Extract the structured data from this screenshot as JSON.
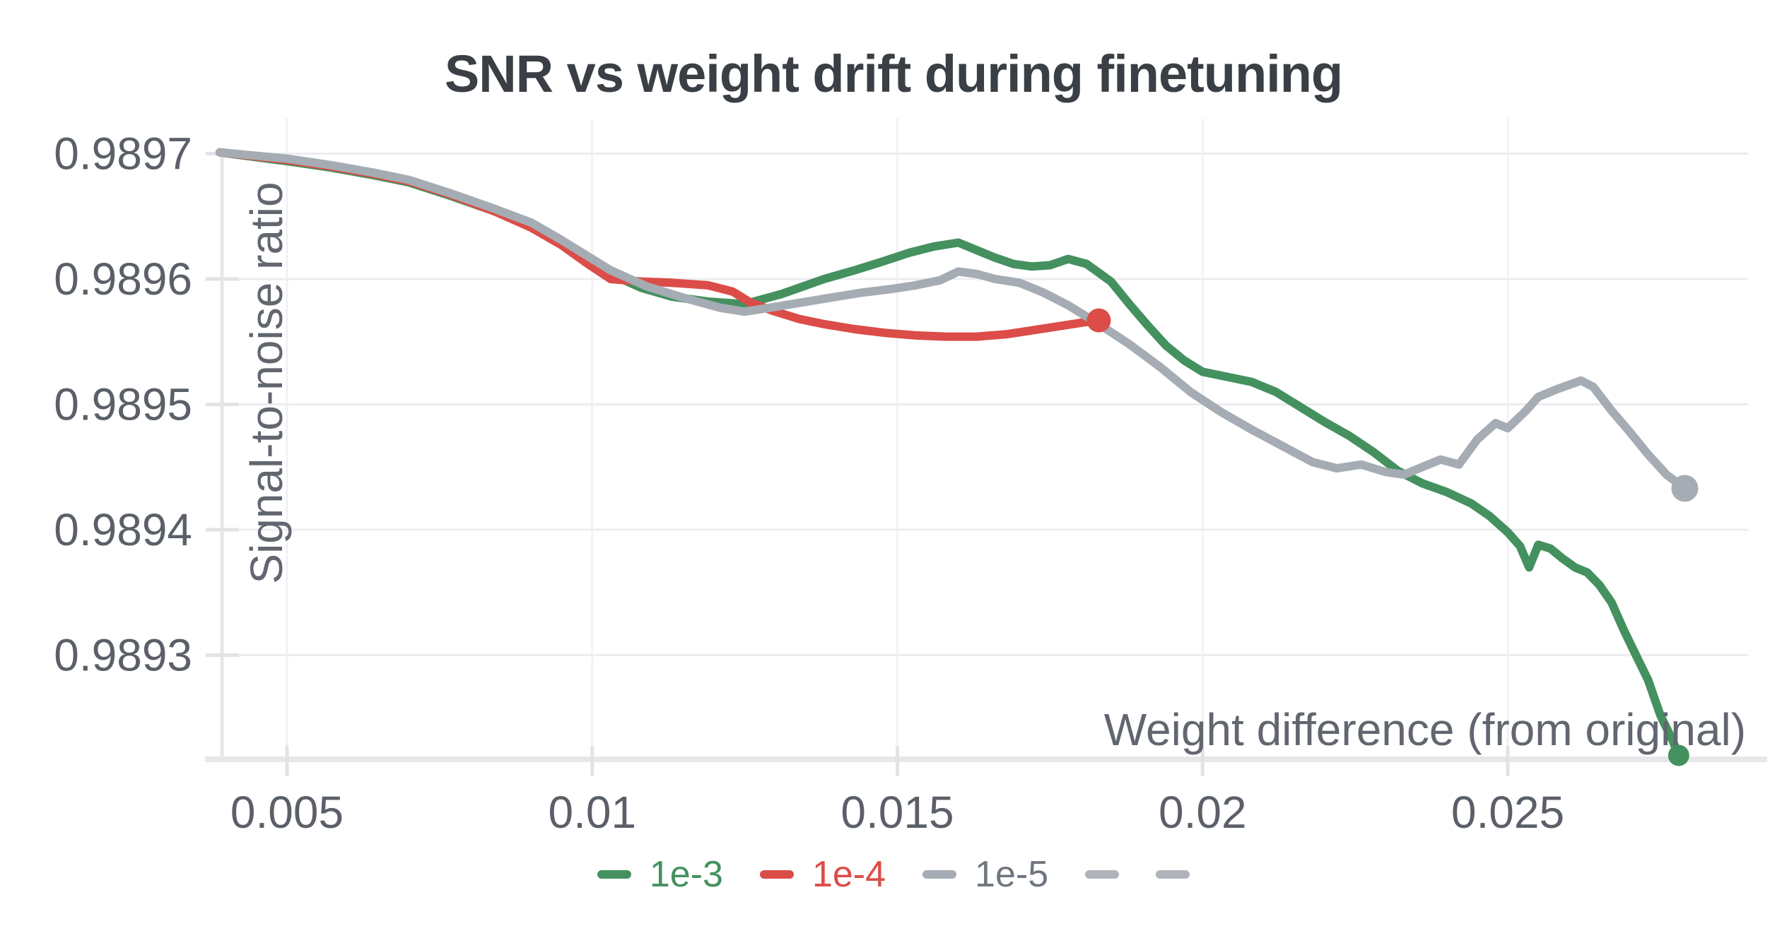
{
  "chart_data": {
    "type": "line",
    "title": "SNR vs weight drift during finetuning",
    "xlabel": "Weight difference (from original)",
    "ylabel": "Signal-to-noise ratio",
    "grid": true,
    "legend_position": "bottom",
    "xlim": [
      0.0039,
      0.0289
    ],
    "ylim": [
      0.98922,
      0.98973
    ],
    "x_ticks": [
      0.005,
      0.01,
      0.015,
      0.02,
      0.025
    ],
    "x_tick_labels": [
      "0.005",
      "0.01",
      "0.015",
      "0.02",
      "0.025"
    ],
    "y_ticks": [
      0.9893,
      0.9894,
      0.9895,
      0.9896,
      0.9897
    ],
    "y_tick_labels": [
      "0.9893",
      "0.9894",
      "0.9895",
      "0.9896",
      "0.9897"
    ],
    "colors": {
      "green": "#44915f",
      "red": "#dc4c48",
      "gray": "#a5acb3",
      "legend_gray_text": "#6f767f",
      "title_text": "#3a3f45",
      "tick_text": "#5b6068",
      "axis_label_text": "#61666f",
      "gridline": "#ededf0",
      "axis_line": "#e7e7ea",
      "tick_mark": "#e2e3e6"
    },
    "series": [
      {
        "name": "1e-3",
        "color": "#44915f",
        "label_color": "#44915f",
        "end_dot": true,
        "end_dot_radius": 15,
        "points": [
          [
            0.0039,
            0.989701
          ],
          [
            0.005,
            0.989694
          ],
          [
            0.0057,
            0.989689
          ],
          [
            0.0064,
            0.989683
          ],
          [
            0.007,
            0.989677
          ],
          [
            0.0077,
            0.989666
          ],
          [
            0.0084,
            0.989654
          ],
          [
            0.009,
            0.989643
          ],
          [
            0.0095,
            0.989629
          ],
          [
            0.0099,
            0.989617
          ],
          [
            0.0103,
            0.989604
          ],
          [
            0.0108,
            0.989593
          ],
          [
            0.0113,
            0.989586
          ],
          [
            0.0119,
            0.989582
          ],
          [
            0.0125,
            0.98958
          ],
          [
            0.0131,
            0.989588
          ],
          [
            0.0138,
            0.9896
          ],
          [
            0.0143,
            0.989607
          ],
          [
            0.0147,
            0.989613
          ],
          [
            0.0152,
            0.989621
          ],
          [
            0.0156,
            0.989626
          ],
          [
            0.016,
            0.989629
          ],
          [
            0.0163,
            0.989623
          ],
          [
            0.0166,
            0.989617
          ],
          [
            0.0169,
            0.989612
          ],
          [
            0.0172,
            0.98961
          ],
          [
            0.0175,
            0.989611
          ],
          [
            0.0178,
            0.989616
          ],
          [
            0.0181,
            0.989612
          ],
          [
            0.0185,
            0.989598
          ],
          [
            0.0188,
            0.98958
          ],
          [
            0.0191,
            0.989563
          ],
          [
            0.0194,
            0.989547
          ],
          [
            0.0197,
            0.989535
          ],
          [
            0.02,
            0.989526
          ],
          [
            0.0204,
            0.989522
          ],
          [
            0.0208,
            0.989518
          ],
          [
            0.0212,
            0.98951
          ],
          [
            0.0216,
            0.989498
          ],
          [
            0.022,
            0.989486
          ],
          [
            0.0224,
            0.989475
          ],
          [
            0.0228,
            0.989462
          ],
          [
            0.0232,
            0.989447
          ],
          [
            0.0236,
            0.989437
          ],
          [
            0.024,
            0.98943
          ],
          [
            0.0244,
            0.989421
          ],
          [
            0.0247,
            0.989411
          ],
          [
            0.025,
            0.989398
          ],
          [
            0.0252,
            0.989387
          ],
          [
            0.02535,
            0.98937
          ],
          [
            0.0255,
            0.989388
          ],
          [
            0.0257,
            0.989385
          ],
          [
            0.0259,
            0.989377
          ],
          [
            0.0261,
            0.98937
          ],
          [
            0.0263,
            0.989366
          ],
          [
            0.0265,
            0.989356
          ],
          [
            0.0267,
            0.989342
          ],
          [
            0.0269,
            0.98932
          ],
          [
            0.0271,
            0.9893
          ],
          [
            0.0273,
            0.98928
          ],
          [
            0.0275,
            0.989252
          ],
          [
            0.0277,
            0.989232
          ],
          [
            0.0278,
            0.98922
          ]
        ]
      },
      {
        "name": "1e-4",
        "color": "#dc4c48",
        "label_color": "#dc4c48",
        "end_dot": true,
        "end_dot_radius": 17,
        "points": [
          [
            0.0039,
            0.989701
          ],
          [
            0.005,
            0.989695
          ],
          [
            0.0057,
            0.98969
          ],
          [
            0.0064,
            0.989684
          ],
          [
            0.007,
            0.989678
          ],
          [
            0.0077,
            0.989667
          ],
          [
            0.0084,
            0.989654
          ],
          [
            0.009,
            0.989641
          ],
          [
            0.0095,
            0.989627
          ],
          [
            0.0099,
            0.989613
          ],
          [
            0.0103,
            0.9896
          ],
          [
            0.0108,
            0.989598
          ],
          [
            0.0113,
            0.989597
          ],
          [
            0.0119,
            0.989595
          ],
          [
            0.0123,
            0.98959
          ],
          [
            0.0126,
            0.989581
          ],
          [
            0.013,
            0.989574
          ],
          [
            0.0134,
            0.989568
          ],
          [
            0.0138,
            0.989564
          ],
          [
            0.0143,
            0.98956
          ],
          [
            0.0148,
            0.989557
          ],
          [
            0.0153,
            0.989555
          ],
          [
            0.0158,
            0.989554
          ],
          [
            0.0163,
            0.989554
          ],
          [
            0.0168,
            0.989556
          ],
          [
            0.0172,
            0.989559
          ],
          [
            0.0176,
            0.989562
          ],
          [
            0.018,
            0.989565
          ],
          [
            0.0183,
            0.989567
          ]
        ]
      },
      {
        "name": "1e-5",
        "color": "#a5acb3",
        "label_color": "#6f767f",
        "end_dot": true,
        "end_dot_radius": 19,
        "points": [
          [
            0.0039,
            0.989701
          ],
          [
            0.005,
            0.989696
          ],
          [
            0.0057,
            0.989691
          ],
          [
            0.0064,
            0.989685
          ],
          [
            0.007,
            0.989679
          ],
          [
            0.0077,
            0.989668
          ],
          [
            0.0084,
            0.989656
          ],
          [
            0.009,
            0.989645
          ],
          [
            0.0095,
            0.989631
          ],
          [
            0.0099,
            0.989619
          ],
          [
            0.0103,
            0.989607
          ],
          [
            0.0109,
            0.989594
          ],
          [
            0.0115,
            0.989585
          ],
          [
            0.0121,
            0.989577
          ],
          [
            0.0125,
            0.989574
          ],
          [
            0.0129,
            0.989577
          ],
          [
            0.0134,
            0.989581
          ],
          [
            0.0139,
            0.989585
          ],
          [
            0.0144,
            0.989589
          ],
          [
            0.0149,
            0.989592
          ],
          [
            0.0153,
            0.989595
          ],
          [
            0.0157,
            0.989599
          ],
          [
            0.016,
            0.989606
          ],
          [
            0.0163,
            0.989604
          ],
          [
            0.0166,
            0.9896
          ],
          [
            0.017,
            0.989597
          ],
          [
            0.0174,
            0.989589
          ],
          [
            0.0178,
            0.989579
          ],
          [
            0.0183,
            0.989564
          ],
          [
            0.0188,
            0.989548
          ],
          [
            0.0193,
            0.98953
          ],
          [
            0.0198,
            0.98951
          ],
          [
            0.0203,
            0.989494
          ],
          [
            0.0208,
            0.98948
          ],
          [
            0.0213,
            0.989467
          ],
          [
            0.0218,
            0.989454
          ],
          [
            0.0222,
            0.989449
          ],
          [
            0.0226,
            0.989452
          ],
          [
            0.023,
            0.989446
          ],
          [
            0.0233,
            0.989444
          ],
          [
            0.0236,
            0.98945
          ],
          [
            0.0239,
            0.989456
          ],
          [
            0.0242,
            0.989452
          ],
          [
            0.0245,
            0.989472
          ],
          [
            0.0248,
            0.989485
          ],
          [
            0.025,
            0.989481
          ],
          [
            0.0253,
            0.989495
          ],
          [
            0.0255,
            0.989506
          ],
          [
            0.0258,
            0.989512
          ],
          [
            0.0262,
            0.989519
          ],
          [
            0.0264,
            0.989514
          ],
          [
            0.0267,
            0.989495
          ],
          [
            0.027,
            0.989478
          ],
          [
            0.0273,
            0.98946
          ],
          [
            0.0276,
            0.989444
          ],
          [
            0.0279,
            0.989433
          ]
        ]
      },
      {
        "name": "",
        "color": "#aeb4ba",
        "label_color": "#6f767f",
        "end_dot": false,
        "points": []
      },
      {
        "name": "",
        "color": "#aeb4ba",
        "label_color": "#6f767f",
        "end_dot": false,
        "points": []
      }
    ]
  }
}
